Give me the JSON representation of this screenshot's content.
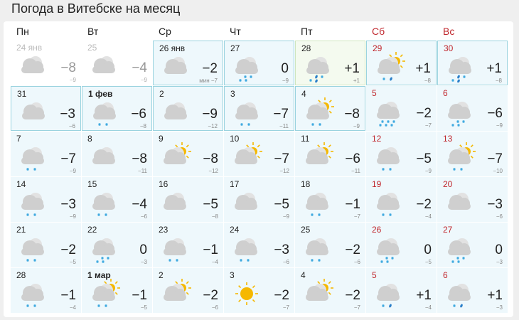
{
  "title": "Погода в Витебске на месяц",
  "weekdays": [
    {
      "label": "Пн",
      "weekend": false
    },
    {
      "label": "Вт",
      "weekend": false
    },
    {
      "label": "Ср",
      "weekend": false
    },
    {
      "label": "Чт",
      "weekend": false
    },
    {
      "label": "Пт",
      "weekend": false
    },
    {
      "label": "Сб",
      "weekend": true
    },
    {
      "label": "Вс",
      "weekend": true
    }
  ],
  "colors": {
    "weekend": "#c0272d",
    "highlight_border": "#9ad3df",
    "cell_bg": "#eef8fc",
    "cloud": "#cfcfcf",
    "sun": "#f5b800",
    "snow": "#3fa9e0"
  },
  "days": [
    {
      "date": "24 янв",
      "temp": "−8",
      "min": "−9",
      "sky": "cloud",
      "precip": "",
      "past": true
    },
    {
      "date": "25",
      "temp": "−4",
      "min": "−9",
      "sky": "cloud",
      "precip": "",
      "past": true
    },
    {
      "date": "26 янв",
      "temp": "−2",
      "min": "мин −7",
      "sky": "cloud",
      "precip": "",
      "hl": true
    },
    {
      "date": "27",
      "temp": "0",
      "min": "−9",
      "sky": "cloud",
      "precip": "snow4",
      "hl": true
    },
    {
      "date": "28",
      "temp": "+1",
      "min": "+1",
      "sky": "cloud",
      "precip": "rs3",
      "today": true
    },
    {
      "date": "29",
      "temp": "+1",
      "min": "−8",
      "sky": "partly",
      "precip": "rs2",
      "hl": true
    },
    {
      "date": "30",
      "temp": "+1",
      "min": "−8",
      "sky": "cloud",
      "precip": "rs3",
      "hl": true
    },
    {
      "date": "31",
      "temp": "−3",
      "min": "−6",
      "sky": "cloud",
      "precip": "",
      "hl": true
    },
    {
      "date": "1 фев",
      "temp": "−6",
      "min": "−8",
      "sky": "cloud",
      "precip": "snow2",
      "hl": true,
      "bold": true
    },
    {
      "date": "2",
      "temp": "−9",
      "min": "−12",
      "sky": "cloud",
      "precip": "",
      "hl": true
    },
    {
      "date": "3",
      "temp": "−7",
      "min": "−11",
      "sky": "cloud",
      "precip": "snow2",
      "hl": true
    },
    {
      "date": "4",
      "temp": "−8",
      "min": "−9",
      "sky": "partly",
      "precip": "snow2",
      "hl": true
    },
    {
      "date": "5",
      "temp": "−2",
      "min": "−7",
      "sky": "cloud",
      "precip": "snow6"
    },
    {
      "date": "6",
      "temp": "−6",
      "min": "−9",
      "sky": "cloud",
      "precip": "snow4"
    },
    {
      "date": "7",
      "temp": "−7",
      "min": "−9",
      "sky": "cloud",
      "precip": "snow2"
    },
    {
      "date": "8",
      "temp": "−8",
      "min": "−11",
      "sky": "cloud",
      "precip": ""
    },
    {
      "date": "9",
      "temp": "−8",
      "min": "−12",
      "sky": "partly",
      "precip": ""
    },
    {
      "date": "10",
      "temp": "−7",
      "min": "−12",
      "sky": "partly",
      "precip": ""
    },
    {
      "date": "11",
      "temp": "−6",
      "min": "−11",
      "sky": "partly",
      "precip": ""
    },
    {
      "date": "12",
      "temp": "−5",
      "min": "−9",
      "sky": "cloud",
      "precip": "snow2"
    },
    {
      "date": "13",
      "temp": "−7",
      "min": "−10",
      "sky": "partly",
      "precip": "snow2"
    },
    {
      "date": "14",
      "temp": "−3",
      "min": "−9",
      "sky": "cloud",
      "precip": "snow2"
    },
    {
      "date": "15",
      "temp": "−4",
      "min": "−6",
      "sky": "cloud",
      "precip": "snow2"
    },
    {
      "date": "16",
      "temp": "−5",
      "min": "−8",
      "sky": "cloud",
      "precip": ""
    },
    {
      "date": "17",
      "temp": "−5",
      "min": "−9",
      "sky": "cloud",
      "precip": ""
    },
    {
      "date": "18",
      "temp": "−1",
      "min": "−7",
      "sky": "cloud",
      "precip": "snow2"
    },
    {
      "date": "19",
      "temp": "−2",
      "min": "−4",
      "sky": "cloud",
      "precip": "snow2"
    },
    {
      "date": "20",
      "temp": "−3",
      "min": "−6",
      "sky": "cloud",
      "precip": ""
    },
    {
      "date": "21",
      "temp": "−2",
      "min": "−5",
      "sky": "cloud",
      "precip": "snow2"
    },
    {
      "date": "22",
      "temp": "0",
      "min": "−3",
      "sky": "cloud",
      "precip": "snow4"
    },
    {
      "date": "23",
      "temp": "−1",
      "min": "−4",
      "sky": "cloud",
      "precip": "snow2"
    },
    {
      "date": "24",
      "temp": "−3",
      "min": "−6",
      "sky": "cloud",
      "precip": "snow2"
    },
    {
      "date": "25",
      "temp": "−2",
      "min": "−6",
      "sky": "cloud",
      "precip": "snow2"
    },
    {
      "date": "26",
      "temp": "0",
      "min": "−5",
      "sky": "cloud",
      "precip": "snow4"
    },
    {
      "date": "27",
      "temp": "0",
      "min": "−3",
      "sky": "cloud",
      "precip": "snow4"
    },
    {
      "date": "28",
      "temp": "−1",
      "min": "−4",
      "sky": "cloud",
      "precip": "snow2"
    },
    {
      "date": "1 мар",
      "temp": "−1",
      "min": "−5",
      "sky": "partly",
      "precip": "snow2",
      "bold": true
    },
    {
      "date": "2",
      "temp": "−2",
      "min": "−6",
      "sky": "partly",
      "precip": ""
    },
    {
      "date": "3",
      "temp": "−2",
      "min": "−7",
      "sky": "sun",
      "precip": ""
    },
    {
      "date": "4",
      "temp": "−2",
      "min": "−7",
      "sky": "partly",
      "precip": ""
    },
    {
      "date": "5",
      "temp": "+1",
      "min": "−4",
      "sky": "cloud",
      "precip": "rs2"
    },
    {
      "date": "6",
      "temp": "+1",
      "min": "−3",
      "sky": "cloud",
      "precip": "rs2"
    }
  ]
}
